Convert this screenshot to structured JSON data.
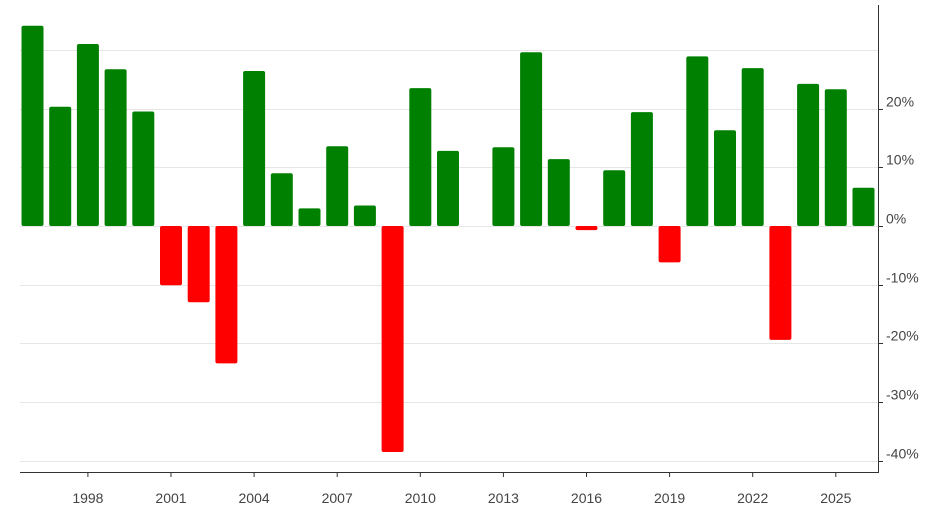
{
  "chart_data": {
    "type": "bar",
    "categories": [
      "1996",
      "1997",
      "1998",
      "1999",
      "2000",
      "2001",
      "2002",
      "2003",
      "2004",
      "2005",
      "2006",
      "2007",
      "2008",
      "2009",
      "2010",
      "2011",
      "2012",
      "2013",
      "2014",
      "2015",
      "2016",
      "2017",
      "2018",
      "2019",
      "2020",
      "2021",
      "2022",
      "2023",
      "2024",
      "2025",
      "2026"
    ],
    "values": [
      34.1,
      20.3,
      31.0,
      26.7,
      19.5,
      -10.1,
      -13.0,
      -23.4,
      26.4,
      9.0,
      3.0,
      13.6,
      3.5,
      -38.5,
      23.5,
      12.8,
      0,
      13.4,
      29.6,
      11.4,
      -0.7,
      9.5,
      19.4,
      -6.2,
      28.9,
      16.3,
      26.9,
      -19.4,
      24.2,
      23.3,
      6.5
    ],
    "x_tick_labels": [
      "1998",
      "2001",
      "2004",
      "2007",
      "2010",
      "2013",
      "2016",
      "2019",
      "2022",
      "2025"
    ],
    "y_ticks": [
      -40,
      -30,
      -20,
      -10,
      0,
      10,
      20
    ],
    "y_tick_labels": [
      "-40%",
      "-30%",
      "-20%",
      "-10%",
      "0%",
      "10%",
      "20%"
    ],
    "ylim": [
      -42,
      37
    ],
    "title": "",
    "xlabel": "",
    "ylabel": "",
    "y_axis_position": "right",
    "grid": true,
    "legend": "none",
    "colors": {
      "positive": "#008000",
      "negative": "#ff0000",
      "grid": "#e6e6e6",
      "axis": "#333333",
      "text": "#444444"
    }
  }
}
